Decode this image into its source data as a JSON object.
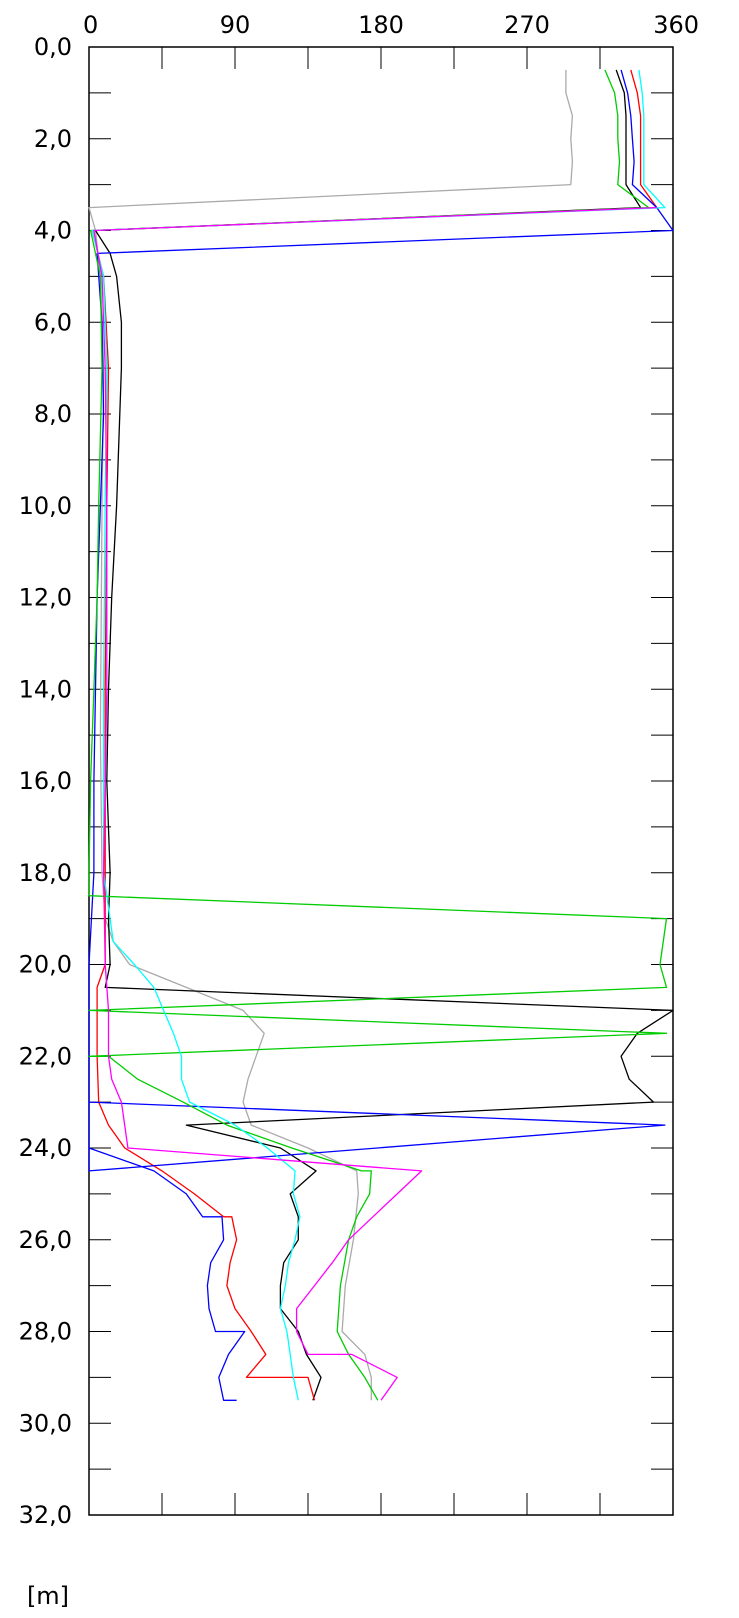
{
  "chart_data": {
    "type": "line",
    "orientation": "depth-profile",
    "x_axis_position": "top",
    "xlim": [
      0,
      360
    ],
    "ylim": [
      0,
      32
    ],
    "y_inverted": true,
    "grid": false,
    "x_ticks": [
      0,
      90,
      180,
      270,
      360
    ],
    "x_tick_labels": [
      "0",
      "90",
      "180",
      "270",
      "360"
    ],
    "y_ticks": [
      0,
      2,
      4,
      6,
      8,
      10,
      12,
      14,
      16,
      18,
      20,
      22,
      24,
      26,
      28,
      30,
      32
    ],
    "y_tick_labels": [
      "0,0",
      "2,0",
      "4,0",
      "6,0",
      "8,0",
      "10,0",
      "12,0",
      "14,0",
      "16,0",
      "18,0",
      "20,0",
      "22,0",
      "24,0",
      "26,0",
      "28,0",
      "30,0",
      "32,0"
    ],
    "y_unit": "[m]",
    "series": [
      {
        "color": "#aaaaaa",
        "points": [
          [
            294,
            0.5
          ],
          [
            294,
            1.0
          ],
          [
            298,
            1.5
          ],
          [
            297,
            2.0
          ],
          [
            298,
            2.5
          ],
          [
            297,
            3.0
          ],
          [
            0,
            3.5
          ],
          [
            4,
            4.0
          ],
          [
            7,
            5.0
          ],
          [
            9,
            7.0
          ],
          [
            8,
            10.0
          ],
          [
            7,
            15.0
          ],
          [
            8,
            18.0
          ],
          [
            10,
            19.0
          ],
          [
            15,
            19.5
          ],
          [
            25,
            20.0
          ],
          [
            60,
            20.5
          ],
          [
            95,
            21.0
          ],
          [
            108,
            21.5
          ],
          [
            98,
            22.5
          ],
          [
            95,
            23.0
          ],
          [
            100,
            23.5
          ],
          [
            135,
            24.0
          ],
          [
            165,
            24.5
          ],
          [
            166,
            25.0
          ],
          [
            163,
            26.0
          ],
          [
            158,
            27.0
          ],
          [
            156,
            28.0
          ],
          [
            170,
            28.5
          ],
          [
            174,
            29.0
          ],
          [
            174,
            29.5
          ]
        ]
      },
      {
        "color": "#000000",
        "points": [
          [
            325,
            0.5
          ],
          [
            330,
            1.0
          ],
          [
            331,
            1.5
          ],
          [
            331,
            2.0
          ],
          [
            331,
            2.5
          ],
          [
            331,
            3.0
          ],
          [
            340,
            3.5
          ],
          [
            4,
            4.0
          ],
          [
            13,
            4.5
          ],
          [
            17,
            5.0
          ],
          [
            20,
            6.0
          ],
          [
            20,
            7.0
          ],
          [
            19,
            8.0
          ],
          [
            17,
            10.0
          ],
          [
            14,
            12.0
          ],
          [
            12,
            14.0
          ],
          [
            11,
            16.0
          ],
          [
            13,
            18.0
          ],
          [
            12,
            19.0
          ],
          [
            13,
            20.0
          ],
          [
            10,
            20.5
          ],
          [
            360,
            21.0
          ],
          [
            338,
            21.5
          ],
          [
            328,
            22.0
          ],
          [
            333,
            22.5
          ],
          [
            348,
            23.0
          ],
          [
            60,
            23.5
          ],
          [
            118,
            24.0
          ],
          [
            140,
            24.5
          ],
          [
            124,
            25.0
          ],
          [
            129,
            25.5
          ],
          [
            129,
            26.0
          ],
          [
            120,
            26.5
          ],
          [
            118,
            27.0
          ],
          [
            118,
            27.5
          ],
          [
            129,
            28.0
          ],
          [
            134,
            28.5
          ],
          [
            143,
            29.0
          ],
          [
            138,
            29.5
          ]
        ]
      },
      {
        "color": "#ff0000",
        "points": [
          [
            334,
            0.5
          ],
          [
            338,
            1.0
          ],
          [
            340,
            1.5
          ],
          [
            340,
            2.0
          ],
          [
            340,
            2.5
          ],
          [
            340,
            3.0
          ],
          [
            350,
            3.5
          ],
          [
            2,
            4.0
          ],
          [
            9,
            5.0
          ],
          [
            12,
            7.0
          ],
          [
            11,
            10.0
          ],
          [
            10,
            14.0
          ],
          [
            10,
            18.0
          ],
          [
            10,
            20.0
          ],
          [
            5,
            20.5
          ],
          [
            5,
            22.0
          ],
          [
            6,
            23.0
          ],
          [
            12,
            23.5
          ],
          [
            22,
            24.0
          ],
          [
            45,
            24.5
          ],
          [
            65,
            25.0
          ],
          [
            83,
            25.5
          ],
          [
            88,
            25.5
          ],
          [
            91,
            26.0
          ],
          [
            87,
            26.5
          ],
          [
            85,
            27.0
          ],
          [
            90,
            27.5
          ],
          [
            100,
            28.0
          ],
          [
            109,
            28.5
          ],
          [
            97,
            29.0
          ],
          [
            135,
            29.0
          ],
          [
            139,
            29.5
          ]
        ]
      },
      {
        "color": "#0000ff",
        "points": [
          [
            328,
            0.5
          ],
          [
            332,
            1.0
          ],
          [
            334,
            1.5
          ],
          [
            335,
            2.0
          ],
          [
            336,
            2.5
          ],
          [
            335,
            3.0
          ],
          [
            350,
            3.5
          ],
          [
            360,
            4.0
          ],
          [
            5,
            4.5
          ],
          [
            8,
            6.0
          ],
          [
            9,
            8.0
          ],
          [
            7,
            10.0
          ],
          [
            5,
            12.0
          ],
          [
            4,
            14.0
          ],
          [
            3,
            16.0
          ],
          [
            3,
            18.0
          ],
          [
            0,
            20.0
          ],
          [
            0,
            21.0
          ],
          [
            0,
            22.0
          ],
          [
            0,
            23.0
          ],
          [
            0,
            23.5
          ],
          [
            0,
            24.0
          ],
          [
            0,
            24.5
          ],
          [
            355,
            23.5
          ],
          [
            0,
            23.0
          ],
          [
            0,
            24.0
          ],
          [
            40,
            24.5
          ],
          [
            60,
            25.0
          ],
          [
            70,
            25.5
          ],
          [
            82,
            25.5
          ],
          [
            83,
            26.0
          ],
          [
            75,
            26.5
          ],
          [
            73,
            27.0
          ],
          [
            74,
            27.5
          ],
          [
            78,
            28.0
          ],
          [
            96,
            28.0
          ],
          [
            86,
            28.5
          ],
          [
            80,
            29.0
          ],
          [
            83,
            29.5
          ],
          [
            91,
            29.5
          ]
        ]
      },
      {
        "color": "#00cc00",
        "points": [
          [
            318,
            0.5
          ],
          [
            324,
            1.0
          ],
          [
            326,
            1.5
          ],
          [
            326,
            2.0
          ],
          [
            327,
            2.5
          ],
          [
            326,
            3.0
          ],
          [
            345,
            3.5
          ],
          [
            1,
            4.0
          ],
          [
            7,
            5.0
          ],
          [
            8,
            7.0
          ],
          [
            6,
            10.0
          ],
          [
            5,
            12.0
          ],
          [
            3,
            14.0
          ],
          [
            1,
            16.0
          ],
          [
            0,
            18.0
          ],
          [
            0,
            18.5
          ],
          [
            356,
            19.0
          ],
          [
            352,
            20.0
          ],
          [
            356,
            20.5
          ],
          [
            0,
            21.0
          ],
          [
            356,
            21.5
          ],
          [
            0,
            22.0
          ],
          [
            12,
            22.0
          ],
          [
            30,
            22.5
          ],
          [
            58,
            23.0
          ],
          [
            85,
            23.5
          ],
          [
            125,
            24.0
          ],
          [
            168,
            24.5
          ],
          [
            174,
            24.5
          ],
          [
            173,
            25.0
          ],
          [
            165,
            25.5
          ],
          [
            160,
            26.0
          ],
          [
            155,
            27.0
          ],
          [
            153,
            28.0
          ],
          [
            160,
            28.5
          ],
          [
            170,
            29.0
          ],
          [
            178,
            29.5
          ]
        ]
      },
      {
        "color": "#00ffff",
        "points": [
          [
            339,
            0.5
          ],
          [
            341,
            1.0
          ],
          [
            342,
            1.5
          ],
          [
            342,
            2.0
          ],
          [
            342,
            2.5
          ],
          [
            342,
            3.0
          ],
          [
            355,
            3.5
          ],
          [
            2,
            4.0
          ],
          [
            9,
            5.0
          ],
          [
            11,
            7.0
          ],
          [
            10,
            10.0
          ],
          [
            9,
            14.0
          ],
          [
            9,
            18.0
          ],
          [
            15,
            19.5
          ],
          [
            28,
            20.0
          ],
          [
            40,
            20.5
          ],
          [
            46,
            21.0
          ],
          [
            52,
            21.5
          ],
          [
            57,
            22.0
          ],
          [
            57,
            22.5
          ],
          [
            62,
            23.0
          ],
          [
            90,
            23.5
          ],
          [
            110,
            24.0
          ],
          [
            127,
            24.5
          ],
          [
            126,
            25.0
          ],
          [
            130,
            25.5
          ],
          [
            127,
            26.0
          ],
          [
            123,
            26.5
          ],
          [
            121,
            27.0
          ],
          [
            118,
            27.5
          ],
          [
            122,
            28.0
          ],
          [
            124,
            28.5
          ],
          [
            126,
            29.0
          ],
          [
            129,
            29.5
          ]
        ]
      },
      {
        "color": "#ff00ff",
        "points": [
          [
            350,
            3.5
          ],
          [
            3,
            4.0
          ],
          [
            8,
            5.0
          ],
          [
            10,
            7.0
          ],
          [
            11,
            10.0
          ],
          [
            11,
            14.0
          ],
          [
            9,
            18.0
          ],
          [
            10,
            20.0
          ],
          [
            12,
            21.0
          ],
          [
            12,
            22.0
          ],
          [
            14,
            22.5
          ],
          [
            20,
            23.0
          ],
          [
            22,
            23.5
          ],
          [
            24,
            24.0
          ],
          [
            205,
            24.5
          ],
          [
            190,
            25.0
          ],
          [
            175,
            25.5
          ],
          [
            160,
            26.0
          ],
          [
            150,
            26.5
          ],
          [
            139,
            27.0
          ],
          [
            128,
            27.5
          ],
          [
            128,
            28.0
          ],
          [
            135,
            28.5
          ],
          [
            162,
            28.5
          ],
          [
            190,
            29.0
          ],
          [
            180,
            29.5
          ]
        ]
      }
    ]
  }
}
